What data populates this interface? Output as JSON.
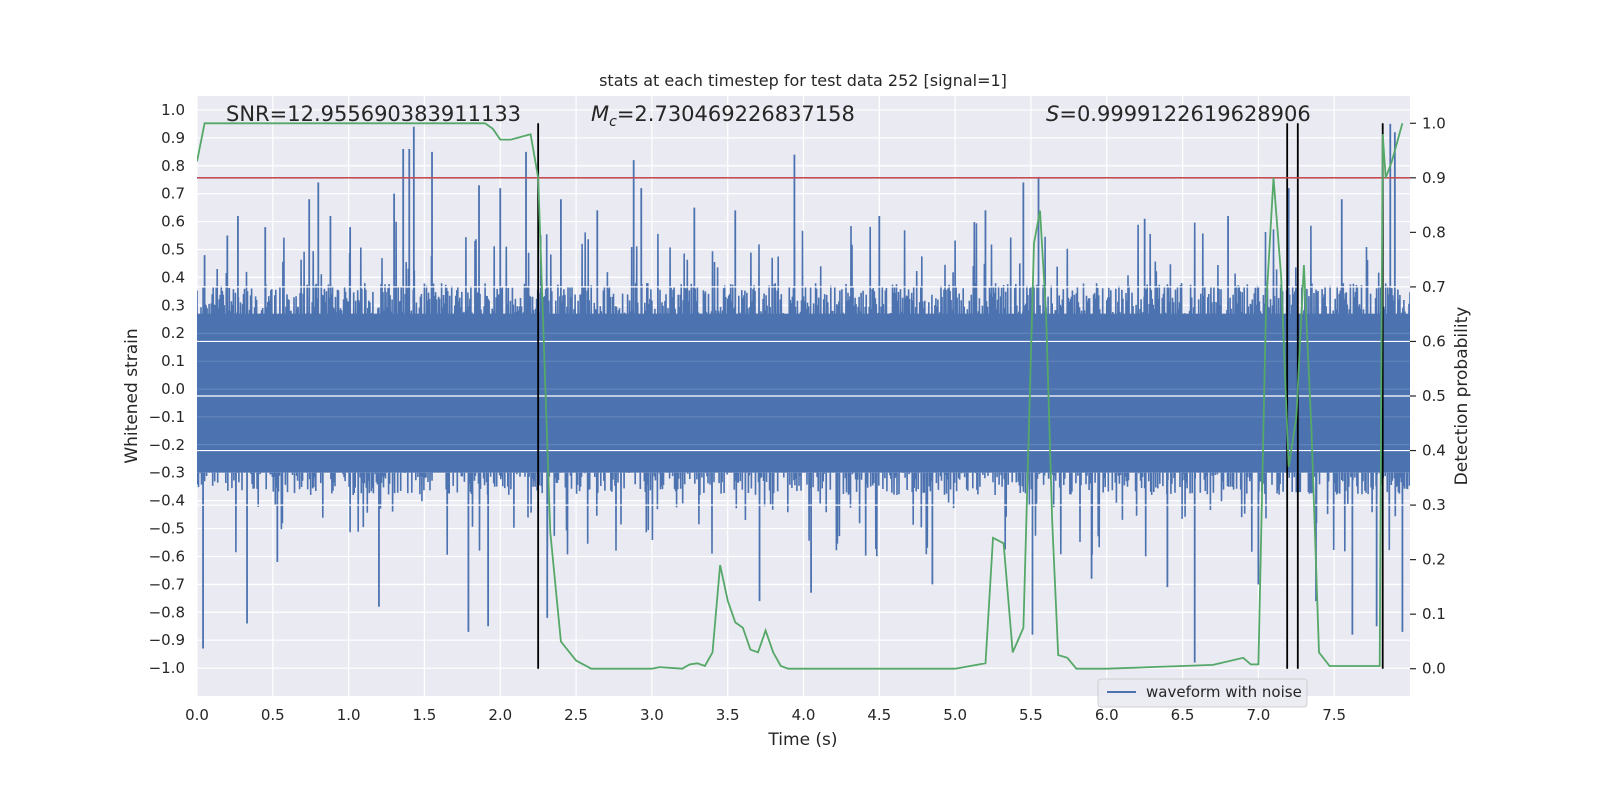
{
  "chart_data": {
    "type": "line",
    "title": "stats at each timestep for test data 252 [signal=1]",
    "xlabel": "Time (s)",
    "ylabel": "Whitened strain",
    "y2label": "Detection probability",
    "xlim": [
      0.0,
      8.0
    ],
    "ylim": [
      -1.1,
      1.05
    ],
    "y2lim": [
      -0.05,
      1.05
    ],
    "xticks": [
      "0.0",
      "0.5",
      "1.0",
      "1.5",
      "2.0",
      "2.5",
      "3.0",
      "3.5",
      "4.0",
      "4.5",
      "5.0",
      "5.5",
      "6.0",
      "6.5",
      "7.0",
      "7.5"
    ],
    "yticks": [
      "-1.0",
      "-0.9",
      "-0.8",
      "-0.7",
      "-0.6",
      "-0.5",
      "-0.4",
      "-0.3",
      "-0.2",
      "-0.1",
      "0.0",
      "0.1",
      "0.2",
      "0.3",
      "0.4",
      "0.5",
      "0.6",
      "0.7",
      "0.8",
      "0.9",
      "1.0"
    ],
    "y2ticks": [
      "0.0",
      "0.1",
      "0.2",
      "0.3",
      "0.4",
      "0.5",
      "0.6",
      "0.7",
      "0.8",
      "0.9",
      "1.0"
    ],
    "grid": true,
    "legend_position": "lower-right",
    "annotations": {
      "snr": "SNR=12.955690383911133",
      "mc_symbol": "M",
      "mc_subscript": "c",
      "mc_value": "=2.730469226837158",
      "s_symbol": "S",
      "s_value": "=0.9999122619628906"
    },
    "colors": {
      "background": "#eaeaf2",
      "grid": "#ffffff",
      "waveform": "#4c72b0",
      "probability": "#55a868",
      "threshold": "#c44e52",
      "markers": "#000000"
    },
    "threshold_probability": 0.9,
    "detection_markers_x": [
      2.25,
      7.19,
      7.26,
      7.82
    ],
    "series": [
      {
        "name": "waveform with noise",
        "role": "waveform",
        "amplitude_envelope": 0.38,
        "peaks": [
          {
            "x": 0.04,
            "y": -0.93
          },
          {
            "x": 0.05,
            "y": 0.48
          },
          {
            "x": 0.2,
            "y": 0.55
          },
          {
            "x": 0.27,
            "y": 0.62
          },
          {
            "x": 0.33,
            "y": -0.84
          },
          {
            "x": 0.45,
            "y": 0.58
          },
          {
            "x": 0.53,
            "y": -0.62
          },
          {
            "x": 0.74,
            "y": 0.68
          },
          {
            "x": 0.8,
            "y": 0.74
          },
          {
            "x": 0.88,
            "y": 0.62
          },
          {
            "x": 1.01,
            "y": 0.58
          },
          {
            "x": 1.2,
            "y": -0.78
          },
          {
            "x": 1.3,
            "y": 0.7
          },
          {
            "x": 1.36,
            "y": 0.86
          },
          {
            "x": 1.4,
            "y": 0.86
          },
          {
            "x": 1.43,
            "y": 0.94
          },
          {
            "x": 1.55,
            "y": 0.85
          },
          {
            "x": 1.79,
            "y": -0.87
          },
          {
            "x": 1.86,
            "y": 0.73
          },
          {
            "x": 1.92,
            "y": -0.85
          },
          {
            "x": 2.0,
            "y": 0.72
          },
          {
            "x": 2.17,
            "y": 0.85
          },
          {
            "x": 2.31,
            "y": -0.82
          },
          {
            "x": 2.4,
            "y": 0.68
          },
          {
            "x": 2.64,
            "y": 0.64
          },
          {
            "x": 2.88,
            "y": 0.82
          },
          {
            "x": 2.93,
            "y": 0.72
          },
          {
            "x": 3.28,
            "y": 0.65
          },
          {
            "x": 3.55,
            "y": 0.64
          },
          {
            "x": 3.71,
            "y": -0.76
          },
          {
            "x": 3.94,
            "y": 0.84
          },
          {
            "x": 4.05,
            "y": -0.73
          },
          {
            "x": 4.5,
            "y": 0.62
          },
          {
            "x": 4.85,
            "y": -0.7
          },
          {
            "x": 5.2,
            "y": 0.64
          },
          {
            "x": 5.45,
            "y": 0.74
          },
          {
            "x": 5.51,
            "y": -0.88
          },
          {
            "x": 5.55,
            "y": 0.76
          },
          {
            "x": 5.9,
            "y": -0.68
          },
          {
            "x": 6.25,
            "y": 0.61
          },
          {
            "x": 6.4,
            "y": -0.71
          },
          {
            "x": 6.58,
            "y": -0.98
          },
          {
            "x": 6.8,
            "y": 0.62
          },
          {
            "x": 7.0,
            "y": -0.7
          },
          {
            "x": 7.2,
            "y": 0.72
          },
          {
            "x": 7.38,
            "y": -0.76
          },
          {
            "x": 7.55,
            "y": 0.68
          },
          {
            "x": 7.62,
            "y": -0.88
          },
          {
            "x": 7.78,
            "y": -0.85
          },
          {
            "x": 7.87,
            "y": 0.95
          },
          {
            "x": 7.9,
            "y": 0.92
          },
          {
            "x": 7.95,
            "y": -0.87
          }
        ]
      },
      {
        "role": "detection-probability",
        "axis": "right",
        "x": [
          0.0,
          0.05,
          0.2,
          0.5,
          1.0,
          1.5,
          1.9,
          1.95,
          2.0,
          2.07,
          2.2,
          2.25,
          2.33,
          2.4,
          2.5,
          2.6,
          3.0,
          3.05,
          3.2,
          3.25,
          3.3,
          3.35,
          3.4,
          3.45,
          3.5,
          3.55,
          3.6,
          3.65,
          3.7,
          3.75,
          3.8,
          3.85,
          3.9,
          3.95,
          4.0,
          4.5,
          5.0,
          5.2,
          5.25,
          5.32,
          5.38,
          5.45,
          5.52,
          5.56,
          5.6,
          5.64,
          5.68,
          5.74,
          5.8,
          5.85,
          5.9,
          5.95,
          6.0,
          6.5,
          6.7,
          6.9,
          6.95,
          7.0,
          7.05,
          7.1,
          7.15,
          7.2,
          7.25,
          7.3,
          7.35,
          7.4,
          7.47,
          7.53,
          7.58,
          7.63,
          7.68,
          7.8,
          7.82,
          7.84,
          7.88,
          7.95
        ],
        "values": [
          0.93,
          1.0,
          1.0,
          1.0,
          1.0,
          1.0,
          1.0,
          0.99,
          0.97,
          0.97,
          0.98,
          0.9,
          0.25,
          0.05,
          0.015,
          0.0,
          0.0,
          0.003,
          0.0,
          0.008,
          0.01,
          0.005,
          0.03,
          0.19,
          0.125,
          0.085,
          0.075,
          0.035,
          0.03,
          0.07,
          0.03,
          0.005,
          0.0,
          0.0,
          0.0,
          0.0,
          0.0,
          0.01,
          0.24,
          0.23,
          0.03,
          0.075,
          0.78,
          0.84,
          0.65,
          0.27,
          0.025,
          0.02,
          0.0,
          0.0,
          0.0,
          0.0,
          0.0,
          0.005,
          0.007,
          0.02,
          0.008,
          0.008,
          0.66,
          0.9,
          0.72,
          0.37,
          0.46,
          0.74,
          0.44,
          0.03,
          0.005,
          0.005,
          0.005,
          0.005,
          0.005,
          0.005,
          0.98,
          0.9,
          0.93,
          1.0
        ]
      }
    ]
  }
}
